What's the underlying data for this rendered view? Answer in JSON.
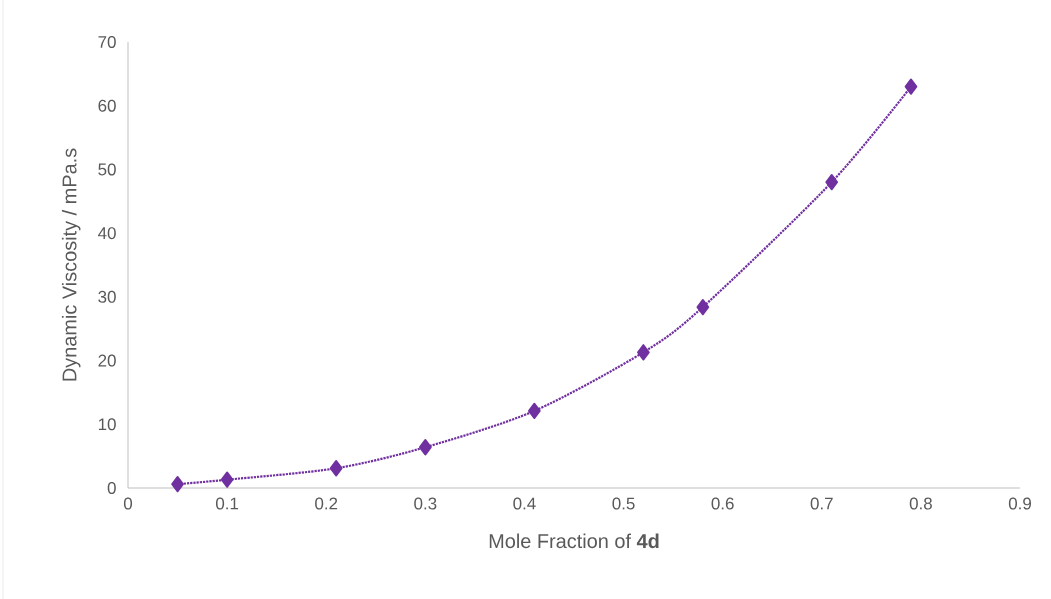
{
  "chart_data": {
    "type": "line",
    "xlabel": "Mole Fraction of **4d**",
    "ylabel": "Dynamic Viscosity / mPa.s",
    "series": [
      {
        "color": "#7030a0",
        "x": [
          0.05,
          0.1,
          0.21,
          0.3,
          0.41,
          0.52,
          0.58,
          0.71,
          0.79
        ],
        "values": [
          0.6,
          1.3,
          3.1,
          6.4,
          12.1,
          21.3,
          28.4,
          48.0,
          63.0
        ]
      }
    ],
    "xlim": [
      0,
      0.9
    ],
    "xticks": [
      0,
      0.1,
      0.2,
      0.3,
      0.4,
      0.5,
      0.6,
      0.7,
      0.8,
      0.9
    ],
    "ylim": [
      0,
      70
    ],
    "yticks": [
      0,
      10,
      20,
      30,
      40,
      50,
      60,
      70
    ],
    "grid": false,
    "marker": "diamond",
    "line_style": "dotted"
  }
}
